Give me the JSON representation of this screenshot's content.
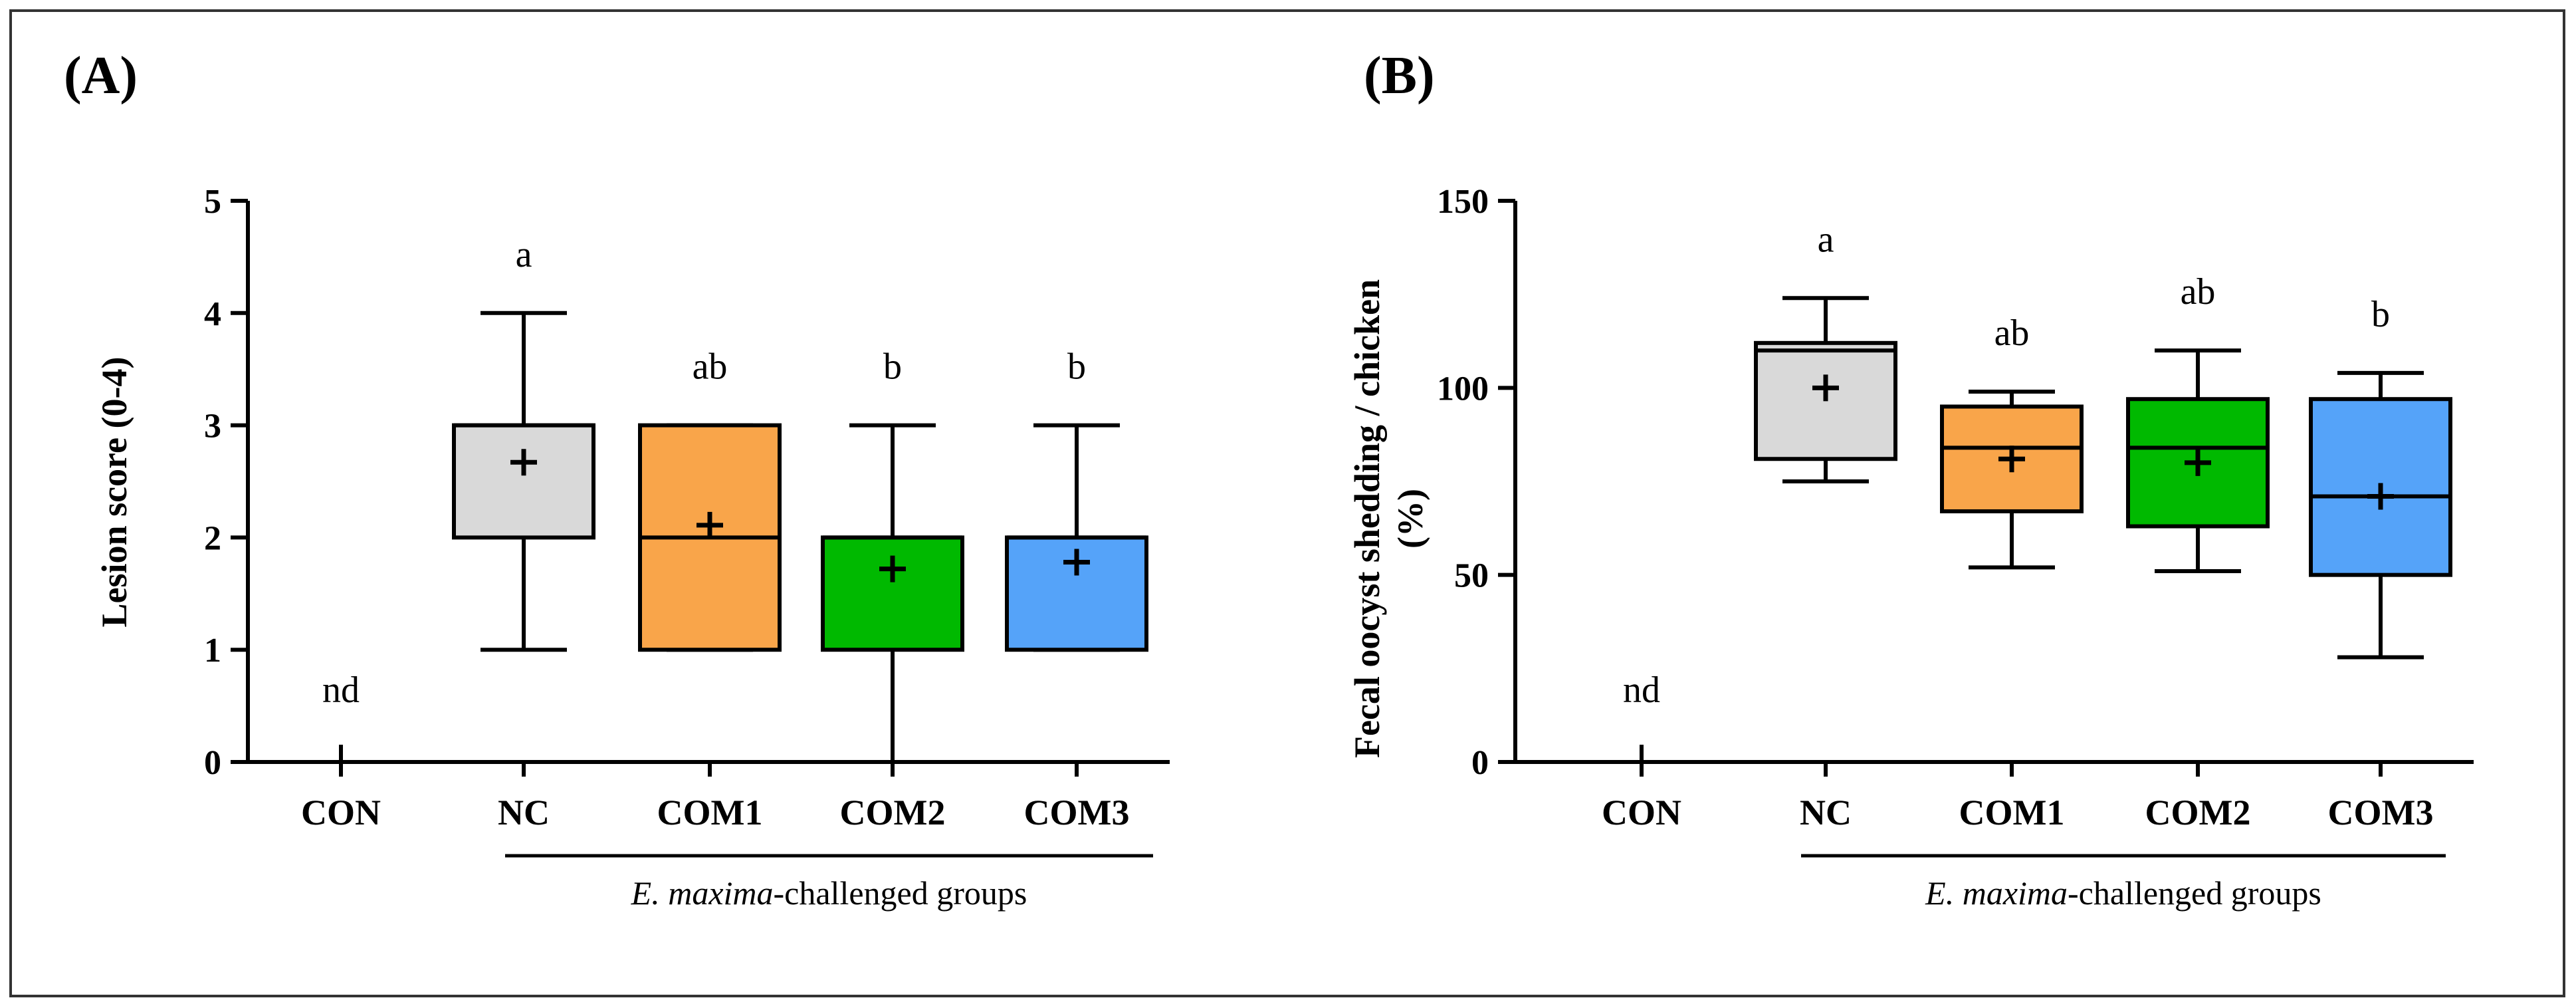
{
  "chart_data": [
    {
      "type": "box",
      "panel_label": "(A)",
      "ylabel": "Lesion score (0-4)",
      "ylim": [
        0,
        5
      ],
      "yticks": [
        "0",
        "1",
        "2",
        "3",
        "4",
        "5"
      ],
      "categories": [
        "CON",
        "NC",
        "COM1",
        "COM2",
        "COM3"
      ],
      "boxes": [
        {
          "group": "CON",
          "min": 0,
          "q1": 0,
          "median": 0,
          "q3": 0,
          "max": 0,
          "mean": 0,
          "color": "#ffffff",
          "letter": "nd"
        },
        {
          "group": "NC",
          "min": 1,
          "q1": 2,
          "median": 3,
          "q3": 3,
          "max": 4,
          "mean": 2.67,
          "color": "#d9d9d9",
          "letter": "a"
        },
        {
          "group": "COM1",
          "min": 1,
          "q1": 1,
          "median": 2,
          "q3": 3,
          "max": 3,
          "mean": 2.11,
          "color": "#f9a54a",
          "letter": "ab"
        },
        {
          "group": "COM2",
          "min": 0,
          "q1": 1,
          "median": 2,
          "q3": 2,
          "max": 3,
          "mean": 1.72,
          "color": "#00b900",
          "letter": "b"
        },
        {
          "group": "COM3",
          "min": 1,
          "q1": 1,
          "median": 2,
          "q3": 2,
          "max": 3,
          "mean": 1.78,
          "color": "#55a3f9",
          "letter": "b"
        }
      ],
      "group_bracket_label_italic": "E. maxima",
      "group_bracket_label_rest": "-challenged groups"
    },
    {
      "type": "box",
      "panel_label": "(B)",
      "ylabel_line1": "Fecal oocyst shedding / chicken",
      "ylabel_line2": "(%)",
      "ylim": [
        0,
        150
      ],
      "yticks": [
        "0",
        "50",
        "100",
        "150"
      ],
      "categories": [
        "CON",
        "NC",
        "COM1",
        "COM2",
        "COM3"
      ],
      "boxes": [
        {
          "group": "CON",
          "min": 0,
          "q1": 0,
          "median": 0,
          "q3": 0,
          "max": 0,
          "mean": 0,
          "color": "#ffffff",
          "letter": "nd"
        },
        {
          "group": "NC",
          "min": 75,
          "q1": 81,
          "median": 110,
          "q3": 112,
          "max": 124,
          "mean": 100,
          "color": "#d9d9d9",
          "letter": "a"
        },
        {
          "group": "COM1",
          "min": 52,
          "q1": 67,
          "median": 84,
          "q3": 95,
          "max": 99,
          "mean": 81,
          "color": "#f9a54a",
          "letter": "ab"
        },
        {
          "group": "COM2",
          "min": 51,
          "q1": 63,
          "median": 84,
          "q3": 97,
          "max": 110,
          "mean": 80,
          "color": "#00b900",
          "letter": "ab"
        },
        {
          "group": "COM3",
          "min": 28,
          "q1": 50,
          "median": 71,
          "q3": 97,
          "max": 104,
          "mean": 71,
          "color": "#55a3f9",
          "letter": "b"
        }
      ],
      "group_bracket_label_italic": "E. maxima",
      "group_bracket_label_rest": "-challenged groups"
    }
  ]
}
